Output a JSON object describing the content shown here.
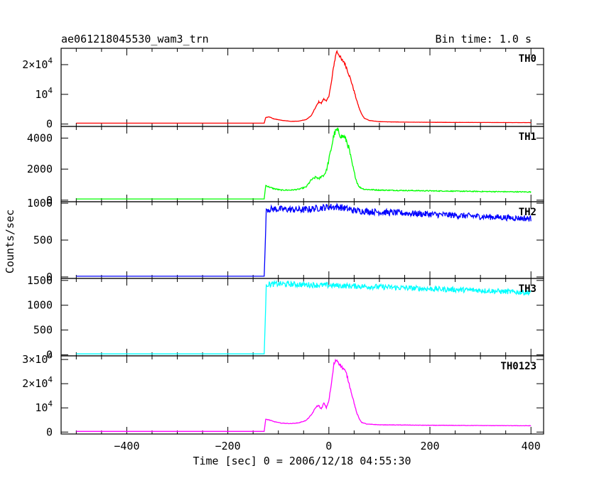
{
  "header": {
    "title": "ae061218045530_wam3_trn",
    "bin_time": "Bin time: 1.0 s"
  },
  "xlabel": "Time [sec] 0 = 2006/12/18 04:55:30",
  "ylabel": "Counts/sec",
  "chart_data": {
    "type": "line",
    "title": "ae061218045530_wam3_trn",
    "subtitle": "Bin time: 1.0 s",
    "xlabel": "Time [sec] 0 = 2006/12/18 04:55:30",
    "ylabel": "Counts/sec",
    "xlim": [
      -530,
      425
    ],
    "x_ticks": [
      -400,
      -200,
      0,
      200,
      400
    ],
    "x_tick_labels": [
      "−400",
      "−200",
      "0",
      "200",
      "400"
    ],
    "grid": false,
    "panels": [
      {
        "name": "TH0",
        "color": "#ff0000",
        "ylim": [
          -800,
          25500
        ],
        "y_ticks": [
          0,
          10000,
          20000
        ],
        "y_tick_labels": [
          {
            "m": "0",
            "e": ""
          },
          {
            "m": "10",
            "e": "4"
          },
          {
            "m": "2×10",
            "e": "4"
          }
        ],
        "points": [
          [
            -500,
            300
          ],
          [
            -128,
            300
          ],
          [
            -125,
            2200
          ],
          [
            -118,
            2400
          ],
          [
            -110,
            1800
          ],
          [
            -95,
            1300
          ],
          [
            -75,
            900
          ],
          [
            -60,
            1000
          ],
          [
            -45,
            1500
          ],
          [
            -35,
            2800
          ],
          [
            -25,
            6000
          ],
          [
            -20,
            7500
          ],
          [
            -15,
            7000
          ],
          [
            -10,
            8600
          ],
          [
            -5,
            7600
          ],
          [
            0,
            9500
          ],
          [
            5,
            14000
          ],
          [
            10,
            20000
          ],
          [
            15,
            24500
          ],
          [
            20,
            23500
          ],
          [
            25,
            21500
          ],
          [
            30,
            21000
          ],
          [
            35,
            19000
          ],
          [
            40,
            16500
          ],
          [
            45,
            14000
          ],
          [
            50,
            11000
          ],
          [
            55,
            8000
          ],
          [
            60,
            5300
          ],
          [
            65,
            3300
          ],
          [
            70,
            2000
          ],
          [
            80,
            1200
          ],
          [
            100,
            800
          ],
          [
            150,
            650
          ],
          [
            250,
            550
          ],
          [
            400,
            500
          ]
        ],
        "noise": 0.03
      },
      {
        "name": "TH1",
        "color": "#00ff00",
        "ylim": [
          -100,
          4750
        ],
        "y_ticks": [
          0,
          2000,
          4000
        ],
        "y_tick_labels": [
          {
            "m": "0",
            "e": ""
          },
          {
            "m": "2000",
            "e": ""
          },
          {
            "m": "4000",
            "e": ""
          }
        ],
        "points": [
          [
            -500,
            80
          ],
          [
            -128,
            80
          ],
          [
            -125,
            950
          ],
          [
            -118,
            850
          ],
          [
            -110,
            750
          ],
          [
            -95,
            650
          ],
          [
            -75,
            650
          ],
          [
            -60,
            700
          ],
          [
            -45,
            850
          ],
          [
            -35,
            1300
          ],
          [
            -25,
            1500
          ],
          [
            -20,
            1350
          ],
          [
            -15,
            1550
          ],
          [
            -10,
            1600
          ],
          [
            -5,
            1900
          ],
          [
            0,
            2600
          ],
          [
            5,
            3400
          ],
          [
            10,
            4200
          ],
          [
            15,
            4500
          ],
          [
            20,
            4350
          ],
          [
            25,
            4100
          ],
          [
            30,
            4100
          ],
          [
            35,
            3800
          ],
          [
            40,
            3300
          ],
          [
            45,
            2500
          ],
          [
            50,
            1800
          ],
          [
            55,
            1200
          ],
          [
            60,
            850
          ],
          [
            70,
            700
          ],
          [
            100,
            650
          ],
          [
            200,
            600
          ],
          [
            300,
            560
          ],
          [
            400,
            530
          ]
        ],
        "noise": 0.05
      },
      {
        "name": "TH2",
        "color": "#0000ff",
        "ylim": [
          -20,
          1020
        ],
        "y_ticks": [
          0,
          500,
          1000
        ],
        "y_tick_labels": [
          {
            "m": "0",
            "e": ""
          },
          {
            "m": "500",
            "e": ""
          },
          {
            "m": "1000",
            "e": ""
          }
        ],
        "points": [
          [
            -500,
            10
          ],
          [
            -128,
            10
          ],
          [
            -126,
            420
          ],
          [
            -124,
            920
          ],
          [
            -100,
            920
          ],
          [
            -50,
            910
          ],
          [
            0,
            950
          ],
          [
            20,
            950
          ],
          [
            50,
            900
          ],
          [
            100,
            880
          ],
          [
            200,
            850
          ],
          [
            300,
            820
          ],
          [
            400,
            790
          ]
        ],
        "noise": 0.05
      },
      {
        "name": "TH3",
        "color": "#00ffff",
        "ylim": [
          -20,
          1540
        ],
        "y_ticks": [
          0,
          500,
          1000,
          1500
        ],
        "y_tick_labels": [
          {
            "m": "0",
            "e": ""
          },
          {
            "m": "500",
            "e": ""
          },
          {
            "m": "1000",
            "e": ""
          },
          {
            "m": "1500",
            "e": ""
          }
        ],
        "points": [
          [
            -500,
            20
          ],
          [
            -128,
            20
          ],
          [
            -126,
            650
          ],
          [
            -124,
            1420
          ],
          [
            -100,
            1430
          ],
          [
            0,
            1400
          ],
          [
            100,
            1370
          ],
          [
            200,
            1330
          ],
          [
            300,
            1300
          ],
          [
            400,
            1250
          ]
        ],
        "noise": 0.04
      },
      {
        "name": "TH0123",
        "color": "#ff00ff",
        "ylim": [
          -800,
          31500
        ],
        "y_ticks": [
          0,
          10000,
          20000,
          30000
        ],
        "y_tick_labels": [
          {
            "m": "0",
            "e": ""
          },
          {
            "m": "10",
            "e": "4"
          },
          {
            "m": "2×10",
            "e": "4"
          },
          {
            "m": "3×10",
            "e": "4"
          }
        ],
        "points": [
          [
            -500,
            300
          ],
          [
            -128,
            300
          ],
          [
            -125,
            5300
          ],
          [
            -118,
            5000
          ],
          [
            -110,
            4400
          ],
          [
            -95,
            3700
          ],
          [
            -75,
            3500
          ],
          [
            -60,
            3800
          ],
          [
            -45,
            4800
          ],
          [
            -35,
            7000
          ],
          [
            -25,
            10500
          ],
          [
            -20,
            11000
          ],
          [
            -15,
            9500
          ],
          [
            -10,
            12000
          ],
          [
            -5,
            10000
          ],
          [
            0,
            13000
          ],
          [
            5,
            20000
          ],
          [
            10,
            28000
          ],
          [
            15,
            30000
          ],
          [
            20,
            28500
          ],
          [
            25,
            27000
          ],
          [
            30,
            26000
          ],
          [
            35,
            24000
          ],
          [
            40,
            20000
          ],
          [
            45,
            16000
          ],
          [
            50,
            12000
          ],
          [
            55,
            8000
          ],
          [
            60,
            5500
          ],
          [
            65,
            4000
          ],
          [
            75,
            3300
          ],
          [
            100,
            3000
          ],
          [
            200,
            2800
          ],
          [
            400,
            2600
          ]
        ],
        "noise": 0.025
      }
    ]
  }
}
